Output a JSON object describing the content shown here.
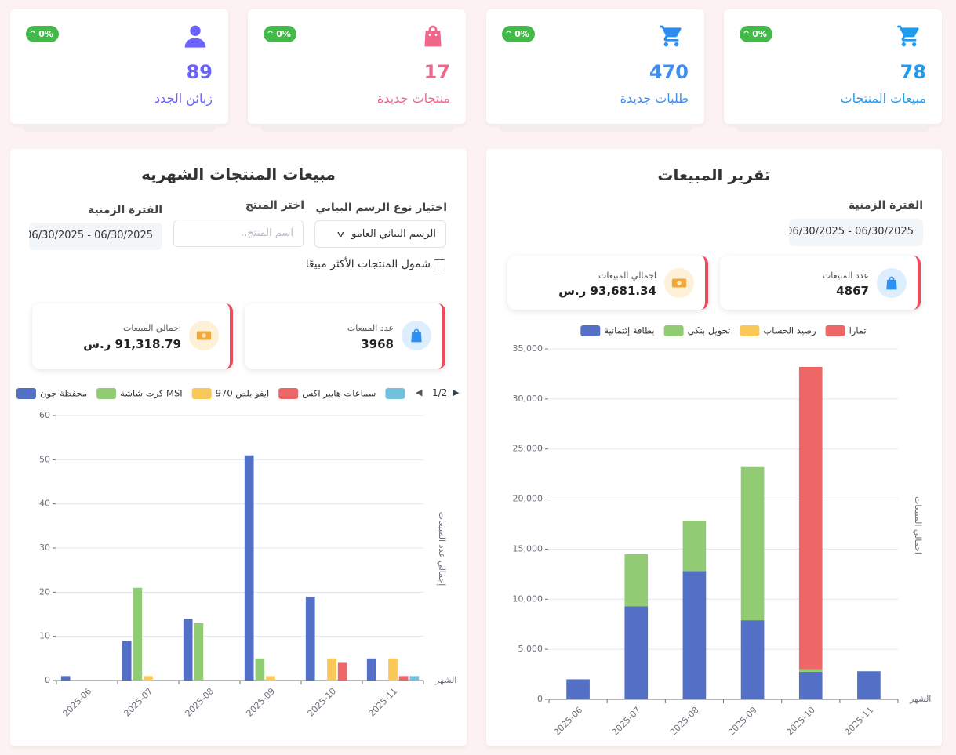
{
  "cards": [
    {
      "value": 78,
      "label": "مبيعات المنتجات",
      "badge": "0%"
    },
    {
      "value": 470,
      "label": "طلبات جديدة",
      "badge": "0%"
    },
    {
      "value": 17,
      "label": "منتجات جديدة",
      "badge": "0%"
    },
    {
      "value": 89,
      "label": "زبائن الجدد",
      "badge": "0%"
    }
  ],
  "left_panel": {
    "title": "مبيعات المنتجات الشهريه",
    "chart_type_label": "اختيار نوع الرسم البياني",
    "chart_type_value": "الرسم البياني العامو",
    "product_label": "اختر المنتج",
    "product_placeholder": "اسم المنتج..",
    "period_label": "الفترة الزمنية",
    "period_value": "06/30/2025 - 06/30/2025",
    "checkbox_label": "شمول المنتجات الأكثر مبيعًا",
    "stats": [
      {
        "label": "عدد المبيعات",
        "value": "3968"
      },
      {
        "label": "اجمالي المبيعات",
        "value": "91,318.79 ر.س"
      }
    ],
    "legend_page": "1/2"
  },
  "right_panel": {
    "title": "تقرير المبيعات",
    "period_label": "الفترة الزمنية",
    "period_value": "06/30/2025 - 06/30/2025",
    "stats": [
      {
        "label": "عدد المبيعات",
        "value": "4867"
      },
      {
        "label": "اجمالي المبيعات",
        "value": "93,681.34 ر.س"
      }
    ]
  },
  "chart_data": [
    {
      "type": "bar",
      "stacked": false,
      "legend": "top-left",
      "grid": true,
      "categories": [
        "2025-06",
        "2025-07",
        "2025-08",
        "2025-09",
        "2025-10",
        "2025-11"
      ],
      "series": [
        {
          "name": "محفظة جون",
          "color": "#5470c6",
          "values": [
            1,
            9,
            14,
            51,
            19,
            5
          ]
        },
        {
          "name": "كرت شاشة MSI",
          "color": "#91cc75",
          "values": [
            0,
            21,
            13,
            5,
            0,
            0
          ]
        },
        {
          "name": "970 ايفو بلص",
          "color": "#fac858",
          "values": [
            0,
            1,
            0,
            1,
            5,
            5
          ]
        },
        {
          "name": "سماعات هايير اكس",
          "color": "#ee6666",
          "values": [
            0,
            0,
            0,
            0,
            4,
            1
          ]
        },
        {
          "color": "#73c0de",
          "values": [
            0,
            0,
            0,
            0,
            0,
            1
          ]
        }
      ],
      "ylim": [
        0,
        60
      ],
      "yticks": [
        0,
        10,
        20,
        30,
        40,
        50,
        60
      ],
      "y_label": "إجمالي عدد المبيعات",
      "x_label": "الشهر"
    },
    {
      "type": "bar",
      "stacked": true,
      "legend": "top",
      "grid": true,
      "categories": [
        "2025-06",
        "2025-07",
        "2025-08",
        "2025-09",
        "2025-10",
        "2025-11"
      ],
      "series": [
        {
          "name": "بطاقة إئتمانية",
          "color": "#5470c6",
          "values": [
            2000,
            9300,
            12800,
            7900,
            2750,
            2800
          ]
        },
        {
          "name": "تحويل بنكي",
          "color": "#91cc75",
          "values": [
            0,
            5200,
            5050,
            15300,
            250,
            0
          ]
        },
        {
          "name": "رصيد الحساب",
          "color": "#fac858",
          "values": [
            0,
            0,
            0,
            0,
            0,
            0
          ]
        },
        {
          "name": "تمارا",
          "color": "#ee6666",
          "values": [
            0,
            0,
            0,
            0,
            30200,
            0
          ]
        }
      ],
      "ylim": [
        0,
        35000
      ],
      "yticks": [
        0,
        {
          "value": 5000,
          "label": "5,000"
        },
        {
          "value": 10000,
          "label": "10,000"
        },
        {
          "value": 15000,
          "label": "15,000"
        },
        {
          "value": 20000,
          "label": "20,000"
        },
        {
          "value": 25000,
          "label": "25,000"
        },
        {
          "value": 30000,
          "label": "30,000"
        },
        {
          "value": 35000,
          "label": "35,000"
        }
      ],
      "y_label": "اجمالي المبيعات",
      "x_label": "الشهر"
    }
  ]
}
